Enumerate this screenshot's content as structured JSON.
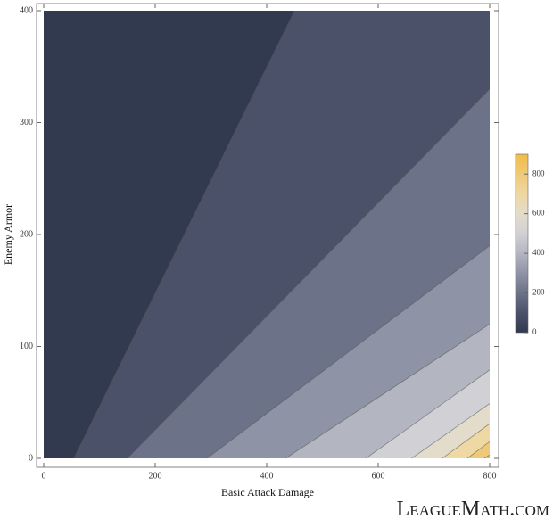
{
  "chart_data": {
    "type": "contour",
    "xlabel": "Basic Attack Damage",
    "ylabel": "Enemy Armor",
    "xlim": [
      0,
      800
    ],
    "ylim": [
      0,
      400
    ],
    "xticks": [
      0,
      200,
      400,
      600,
      800
    ],
    "yticks": [
      0,
      100,
      200,
      300,
      400
    ],
    "band_colors": [
      "#323a4f",
      "#4b5169",
      "#6c7287",
      "#8f93a6",
      "#b3b5c1",
      "#d1d1d5",
      "#e3dccb",
      "#eed8a3",
      "#efc977",
      "#efbd4c"
    ],
    "contours": [
      {
        "x": [
          54,
          450
        ],
        "y": [
          0,
          400
        ]
      },
      {
        "x": [
          150,
          800
        ],
        "y": [
          0,
          330
        ]
      },
      {
        "x": [
          293,
          800
        ],
        "y": [
          0,
          190
        ]
      },
      {
        "x": [
          434,
          800
        ],
        "y": [
          0,
          120
        ]
      },
      {
        "x": [
          578,
          800
        ],
        "y": [
          0,
          79
        ]
      },
      {
        "x": [
          660,
          800
        ],
        "y": [
          0,
          49
        ]
      },
      {
        "x": [
          715,
          800
        ],
        "y": [
          0,
          31
        ]
      },
      {
        "x": [
          760,
          800
        ],
        "y": [
          0,
          15
        ]
      },
      {
        "x": [
          790,
          800
        ],
        "y": [
          0,
          3
        ]
      }
    ],
    "colorbar": {
      "lim": [
        0,
        900
      ],
      "ticks": [
        0,
        200,
        400,
        600,
        800
      ]
    },
    "watermark": "LeagueMath.com"
  }
}
